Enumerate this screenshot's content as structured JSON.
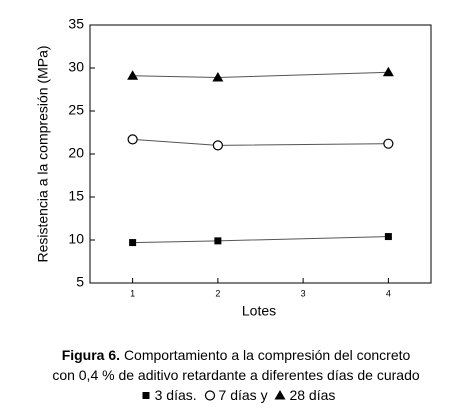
{
  "chart_data": {
    "type": "line",
    "x_label": "Lotes",
    "y_label": "Resistencia a la compresión (MPa)",
    "x": [
      1,
      2,
      4
    ],
    "series": [
      {
        "name": "3 días",
        "color": "#000000",
        "marker": "square",
        "values": [
          9.7,
          9.9,
          10.4
        ]
      },
      {
        "name": "7 días",
        "color": "#000000",
        "marker": "circle",
        "values": [
          21.7,
          21.0,
          21.2
        ]
      },
      {
        "name": "28 días",
        "color": "#000000",
        "marker": "triangle",
        "values": [
          29.1,
          28.9,
          29.5
        ]
      }
    ],
    "xlim": [
      0.5,
      4.5
    ],
    "xticks": [
      1,
      2,
      3,
      4
    ],
    "ylim": [
      5,
      35
    ],
    "yticks": [
      5,
      10,
      15,
      20,
      25,
      30,
      35
    ],
    "grid": false,
    "caption_label": "Figura 6.",
    "caption_text": "Comportamiento a la compresión del concreto con 0,4 % de aditivo retardante a diferentes días de curado",
    "caption_joiners": [
      ".",
      "y"
    ]
  }
}
